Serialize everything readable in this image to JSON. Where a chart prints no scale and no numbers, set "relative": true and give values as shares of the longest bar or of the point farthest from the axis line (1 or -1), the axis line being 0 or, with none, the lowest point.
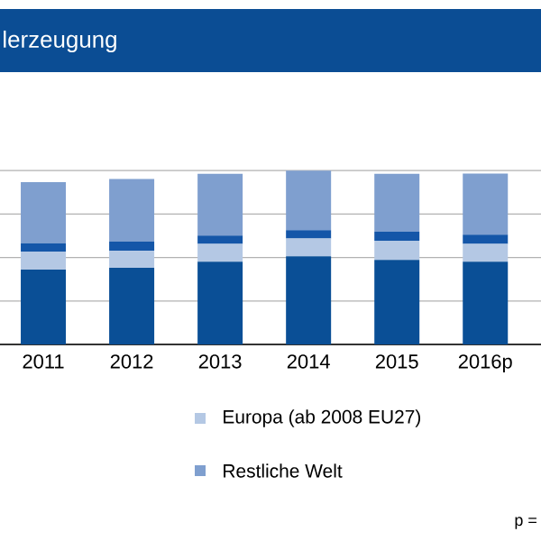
{
  "chart_data": {
    "type": "bar",
    "title": "lerzeugung",
    "stacked": true,
    "relative": true,
    "grid": "y",
    "legend": "bottom",
    "categories": [
      "2011",
      "2012",
      "2013",
      "2014",
      "2015",
      "2016p"
    ],
    "series": [
      {
        "color": "#0a4f96",
        "values": [
          0.431,
          0.441,
          0.476,
          0.507,
          0.486,
          0.476
        ]
      },
      {
        "name": "Europa (ab 2008 EU27)",
        "color": "#b4c8e4",
        "values": [
          0.103,
          0.097,
          0.103,
          0.103,
          0.11,
          0.103
        ]
      },
      {
        "color": "#1456a8",
        "values": [
          0.048,
          0.055,
          0.048,
          0.048,
          0.052,
          0.052
        ]
      },
      {
        "name": "Restliche Welt",
        "color": "#7f9fcf",
        "values": [
          0.352,
          0.359,
          0.355,
          0.342,
          0.334,
          0.352
        ]
      }
    ],
    "annotations": [
      "p ="
    ]
  }
}
